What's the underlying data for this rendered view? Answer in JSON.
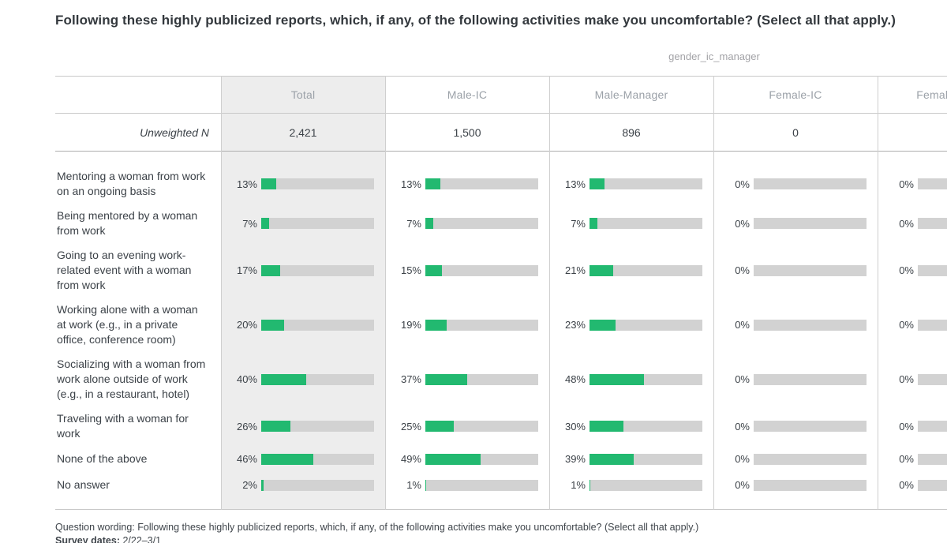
{
  "title": "Following these highly publicized reports, which, if any, of the following activities make you uncomfortable? (Select all that apply.)",
  "crosstab_variable": "gender_ic_manager",
  "table": {
    "unweighted_n_label": "Unweighted N",
    "columns": [
      {
        "label": "Total",
        "unweighted_n": "2,421"
      },
      {
        "label": "Male-IC",
        "unweighted_n": "1,500"
      },
      {
        "label": "Male-Manager",
        "unweighted_n": "896"
      },
      {
        "label": "Female-IC",
        "unweighted_n": "0"
      },
      {
        "label": "Female-Manager",
        "unweighted_n": ""
      }
    ],
    "rows": [
      {
        "label": "Mentoring a woman from work on an ongoing basis",
        "cells": [
          "13%",
          "13%",
          "13%",
          "0%",
          "0%"
        ]
      },
      {
        "label": "Being mentored by a woman from work",
        "cells": [
          "7%",
          "7%",
          "7%",
          "0%",
          "0%"
        ]
      },
      {
        "label": "Going to an evening work-related event with a woman from work",
        "cells": [
          "17%",
          "15%",
          "21%",
          "0%",
          "0%"
        ]
      },
      {
        "label": "Working alone with a woman at work (e.g., in a private office, conference room)",
        "cells": [
          "20%",
          "19%",
          "23%",
          "0%",
          "0%"
        ]
      },
      {
        "label": "Socializing with a woman from work alone outside of work (e.g., in a restaurant, hotel)",
        "cells": [
          "40%",
          "37%",
          "48%",
          "0%",
          "0%"
        ]
      },
      {
        "label": "Traveling with a woman for work",
        "cells": [
          "26%",
          "25%",
          "30%",
          "0%",
          "0%"
        ]
      },
      {
        "label": "None of the above",
        "cells": [
          "46%",
          "49%",
          "39%",
          "0%",
          "0%"
        ]
      },
      {
        "label": "No answer",
        "cells": [
          "2%",
          "1%",
          "1%",
          "0%",
          "0%"
        ]
      }
    ]
  },
  "footer": {
    "question_wording_label": "Question wording:",
    "question_wording": "Following these highly publicized reports, which, if any, of the following activities make you uncomfortable? (Select all that apply.)",
    "survey_dates_label": "Survey dates:",
    "survey_dates": "2/22–3/1"
  },
  "colors": {
    "bar_fill": "#22b970",
    "bar_track": "#d2d2d2",
    "total_column_highlight": "#ededed",
    "header_text": "#9ba1a8",
    "body_text": "#3c4248"
  },
  "chart_data": {
    "type": "bar",
    "orientation": "horizontal",
    "value_unit": "%",
    "xlim": [
      0,
      100
    ],
    "title": "Following these highly publicized reports, which, if any, of the following activities make you uncomfortable? (Select all that apply.)",
    "crosstab_variable": "gender_ic_manager",
    "categories": [
      "Mentoring a woman from work on an ongoing basis",
      "Being mentored by a woman from work",
      "Going to an evening work-related event with a woman from work",
      "Working alone with a woman at work (e.g., in a private office, conference room)",
      "Socializing with a woman from work alone outside of work (e.g., in a restaurant, hotel)",
      "Traveling with a woman for work",
      "None of the above",
      "No answer"
    ],
    "series": [
      {
        "name": "Total",
        "unweighted_n": 2421,
        "values": [
          13,
          7,
          17,
          20,
          40,
          26,
          46,
          2
        ]
      },
      {
        "name": "Male-IC",
        "unweighted_n": 1500,
        "values": [
          13,
          7,
          15,
          19,
          37,
          25,
          49,
          1
        ]
      },
      {
        "name": "Male-Manager",
        "unweighted_n": 896,
        "values": [
          13,
          7,
          21,
          23,
          48,
          30,
          39,
          1
        ]
      },
      {
        "name": "Female-IC",
        "unweighted_n": 0,
        "values": [
          0,
          0,
          0,
          0,
          0,
          0,
          0,
          0
        ]
      },
      {
        "name": "Female-Manager",
        "values": [
          0,
          0,
          0,
          0,
          0,
          0,
          0,
          0
        ]
      }
    ],
    "legend_position": "none",
    "grid": false
  }
}
